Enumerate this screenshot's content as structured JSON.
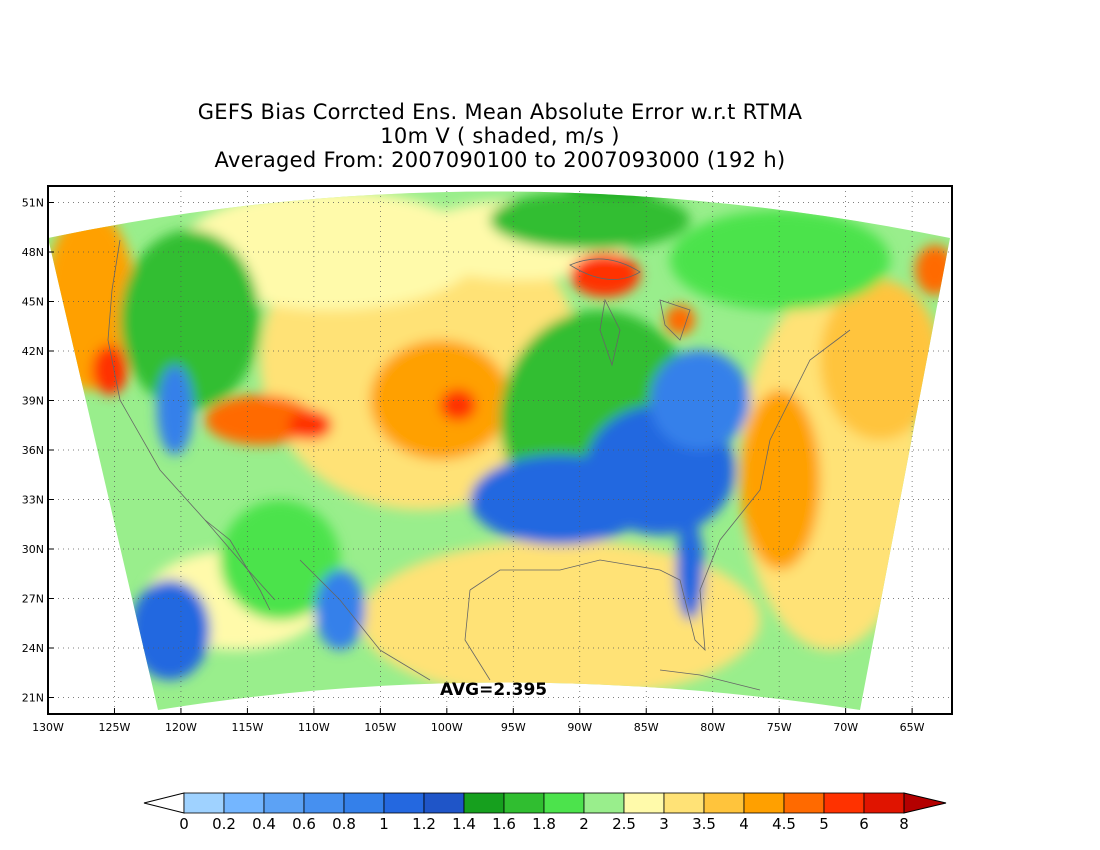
{
  "title": {
    "line1": "GEFS Bias Corrcted Ens. Mean Absolute Error w.r.t RTMA",
    "line2": "10m V ( shaded, m/s )",
    "line3": "Averaged From: 2007090100 to 2007093000 (192 h)"
  },
  "annotation": "AVG=2.395",
  "axes": {
    "lat_labels": [
      "51N",
      "48N",
      "45N",
      "42N",
      "39N",
      "36N",
      "33N",
      "30N",
      "27N",
      "24N",
      "21N"
    ],
    "lat_values": [
      51,
      48,
      45,
      42,
      39,
      36,
      33,
      30,
      27,
      24,
      21
    ],
    "lon_labels": [
      "130W",
      "125W",
      "120W",
      "115W",
      "110W",
      "105W",
      "100W",
      "95W",
      "90W",
      "85W",
      "80W",
      "75W",
      "70W",
      "65W"
    ],
    "lon_values": [
      -130,
      -125,
      -120,
      -115,
      -110,
      -105,
      -100,
      -95,
      -90,
      -85,
      -80,
      -75,
      -70,
      -65
    ],
    "lat_range": [
      20,
      52
    ],
    "lon_range": [
      -130,
      -62
    ],
    "grid": "dotted"
  },
  "colorbar": {
    "labels": [
      "0",
      "0.2",
      "0.4",
      "0.6",
      "0.8",
      "1",
      "1.2",
      "1.4",
      "1.6",
      "1.8",
      "2",
      "2.5",
      "3",
      "3.5",
      "4",
      "4.5",
      "5",
      "6",
      "8"
    ],
    "colors": [
      "#9fd2ff",
      "#74b6ff",
      "#5ca2f5",
      "#4690f0",
      "#3480ea",
      "#2468e0",
      "#1f55c8",
      "#16a01e",
      "#30be30",
      "#4ce34c",
      "#99ee8c",
      "#fffaaa",
      "#ffe276",
      "#ffc43c",
      "#ffa000",
      "#ff6a00",
      "#ff3200",
      "#e01400",
      "#b40000"
    ]
  },
  "map_legend": {
    "blue": "#2468e0",
    "green": "#30be30",
    "light_green": "#99ee8c",
    "yellow": "#ffe276",
    "orange": "#ffa000",
    "red": "#e01400"
  }
}
